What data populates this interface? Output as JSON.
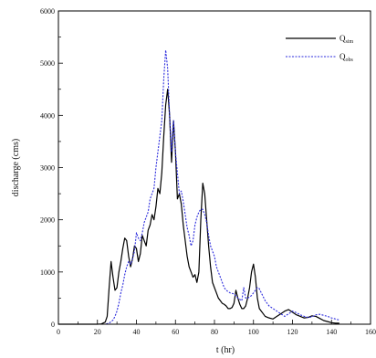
{
  "chart_data": {
    "type": "line",
    "title": "",
    "xlabel": "t (hr)",
    "ylabel": "discharge (cms)",
    "xlim": [
      0,
      160
    ],
    "ylim": [
      0,
      6000
    ],
    "grid": false,
    "legend_position": "top-right",
    "x_ticks": [
      "0",
      "20",
      "40",
      "60",
      "80",
      "100",
      "120",
      "140",
      "160"
    ],
    "y_ticks": [
      "0",
      "1000",
      "2000",
      "3000",
      "4000",
      "5000",
      "6000"
    ],
    "legend": [
      {
        "base": "Q",
        "sub": "sim"
      },
      {
        "base": "Q",
        "sub": "obs"
      }
    ],
    "series": [
      {
        "name": "Qsim",
        "color": "#000000",
        "dash": "solid",
        "x": [
          0,
          20,
          22,
          24,
          25,
          26,
          27,
          28,
          29,
          30,
          31,
          32,
          33,
          34,
          35,
          36,
          37,
          38,
          39,
          40,
          41,
          42,
          43,
          44,
          45,
          46,
          47,
          48,
          49,
          50,
          51,
          52,
          53,
          54,
          55,
          56,
          57,
          58,
          59,
          60,
          61,
          62,
          63,
          64,
          65,
          66,
          67,
          68,
          69,
          70,
          71,
          72,
          73,
          74,
          75,
          76,
          77,
          78,
          79,
          80,
          81,
          82,
          83,
          84,
          85,
          86,
          87,
          88,
          89,
          90,
          91,
          92,
          93,
          94,
          95,
          96,
          97,
          98,
          99,
          100,
          101,
          102,
          103,
          104,
          105,
          106,
          108,
          110,
          112,
          114,
          116,
          118,
          120,
          122,
          124,
          126,
          128,
          130,
          132,
          134,
          136,
          138,
          140,
          142,
          144
        ],
        "y": [
          0,
          0,
          5,
          40,
          150,
          700,
          1200,
          900,
          650,
          700,
          1000,
          1200,
          1450,
          1650,
          1600,
          1300,
          1100,
          1250,
          1500,
          1450,
          1200,
          1350,
          1700,
          1600,
          1500,
          1800,
          1900,
          2100,
          2000,
          2250,
          2600,
          2500,
          2900,
          3600,
          4200,
          4500,
          4000,
          3100,
          3900,
          3300,
          2400,
          2500,
          2300,
          1900,
          1600,
          1300,
          1100,
          1000,
          900,
          950,
          800,
          1000,
          2000,
          2700,
          2500,
          2000,
          1500,
          1100,
          800,
          700,
          600,
          500,
          450,
          400,
          380,
          350,
          300,
          300,
          320,
          400,
          650,
          500,
          380,
          300,
          300,
          350,
          500,
          700,
          1000,
          1150,
          900,
          500,
          300,
          250,
          200,
          150,
          120,
          100,
          150,
          200,
          250,
          280,
          230,
          180,
          150,
          120,
          130,
          160,
          150,
          110,
          70,
          50,
          30,
          20,
          20
        ]
      },
      {
        "name": "Qobs",
        "color": "#2b2bdd",
        "dash": "dashed",
        "x": [
          0,
          24,
          26,
          28,
          29,
          30,
          31,
          32,
          33,
          34,
          35,
          36,
          37,
          38,
          39,
          40,
          41,
          42,
          43,
          44,
          45,
          46,
          47,
          48,
          49,
          50,
          51,
          52,
          53,
          54,
          55,
          56,
          57,
          58,
          59,
          60,
          61,
          62,
          63,
          64,
          65,
          66,
          67,
          68,
          69,
          70,
          71,
          72,
          73,
          74,
          75,
          76,
          77,
          78,
          79,
          80,
          81,
          82,
          83,
          84,
          85,
          86,
          88,
          90,
          92,
          94,
          95,
          96,
          97,
          98,
          99,
          100,
          101,
          102,
          103,
          104,
          106,
          108,
          110,
          112,
          114,
          116,
          118,
          120,
          122,
          124,
          126,
          128,
          130,
          132,
          134,
          136,
          138,
          140,
          142,
          144
        ],
        "y": [
          0,
          0,
          20,
          80,
          150,
          250,
          400,
          600,
          750,
          950,
          1100,
          1200,
          1150,
          1250,
          1400,
          1750,
          1650,
          1600,
          1750,
          1950,
          2050,
          2150,
          2400,
          2500,
          2600,
          3000,
          3300,
          3600,
          3900,
          4700,
          5250,
          4900,
          4000,
          3300,
          3900,
          3300,
          2900,
          2500,
          2550,
          2350,
          2100,
          1850,
          1700,
          1500,
          1600,
          1900,
          2050,
          2150,
          2200,
          2200,
          2100,
          1950,
          1700,
          1500,
          1400,
          1300,
          1100,
          1000,
          900,
          800,
          700,
          650,
          600,
          580,
          500,
          450,
          700,
          500,
          500,
          520,
          550,
          600,
          650,
          700,
          680,
          600,
          450,
          350,
          300,
          250,
          200,
          150,
          200,
          250,
          220,
          180,
          150,
          130,
          140,
          180,
          190,
          170,
          150,
          120,
          100,
          80
        ]
      }
    ]
  }
}
